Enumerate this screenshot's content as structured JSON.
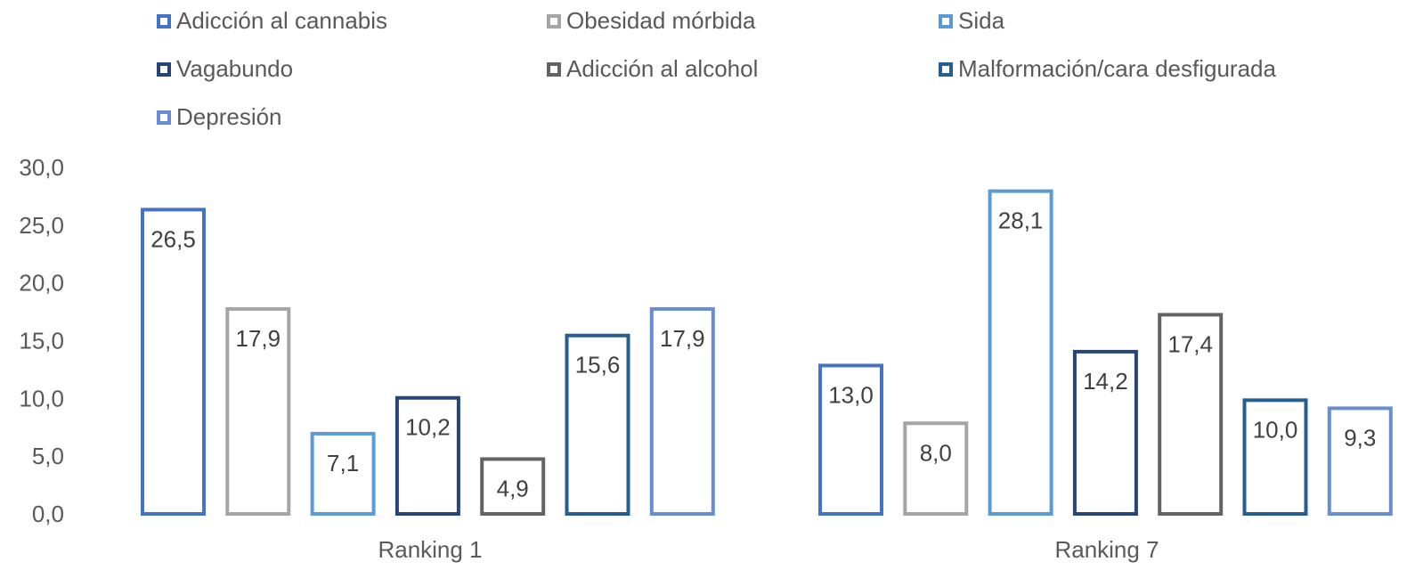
{
  "chart_data": {
    "type": "bar",
    "categories": [
      "Ranking 1",
      "Ranking 7"
    ],
    "series": [
      {
        "name": "Adicción al cannabis",
        "color": "#4472c4",
        "values": [
          26.5,
          13.0
        ],
        "labels": [
          "26,5",
          "13,0"
        ]
      },
      {
        "name": "Obesidad mórbida",
        "color": "#a5a5a5",
        "values": [
          17.9,
          8.0
        ],
        "labels": [
          "17,9",
          "8,0"
        ]
      },
      {
        "name": "Sida",
        "color": "#5b9bd5",
        "values": [
          7.1,
          28.1
        ],
        "labels": [
          "7,1",
          "28,1"
        ]
      },
      {
        "name": "Vagabundo",
        "color": "#264478",
        "values": [
          10.2,
          14.2
        ],
        "labels": [
          "10,2",
          "14,2"
        ]
      },
      {
        "name": "Adicción al alcohol",
        "color": "#636363",
        "values": [
          4.9,
          17.4
        ],
        "labels": [
          "4,9",
          "17,4"
        ]
      },
      {
        "name": "Malformación/cara desfigurada",
        "color": "#255e91",
        "values": [
          15.6,
          10.0
        ],
        "labels": [
          "15,6",
          "10,0"
        ]
      },
      {
        "name": "Depresión",
        "color": "#698ed0",
        "values": [
          17.9,
          9.3
        ],
        "labels": [
          "17,9",
          "9,3"
        ]
      }
    ],
    "ylim": [
      0,
      30
    ],
    "yticks": [
      "0,0",
      "5,0",
      "10,0",
      "15,0",
      "20,0",
      "25,0",
      "30,0"
    ],
    "grid": false,
    "legend_position": "top"
  }
}
